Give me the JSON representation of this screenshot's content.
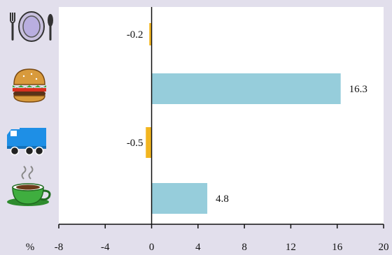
{
  "chart_data": {
    "type": "bar",
    "orientation": "horizontal",
    "categories": [
      "dining",
      "fast food",
      "transport",
      "coffee"
    ],
    "category_icons": [
      "plate-cutlery-icon",
      "hamburger-icon",
      "truck-icon",
      "coffee-cup-icon"
    ],
    "values": [
      -0.2,
      16.3,
      -0.5,
      4.8
    ],
    "value_labels": [
      "-0.2",
      "16.3",
      "-0.5",
      "4.8"
    ],
    "xlim": [
      -8,
      20
    ],
    "xticks": [
      -8,
      -4,
      0,
      4,
      8,
      12,
      16,
      20
    ],
    "unit_label": "%",
    "grid": false,
    "colors": {
      "positive": "#96cddb",
      "negative": "#f2b51f",
      "plot_background": "#ffffff",
      "page_background": "#e2dfec"
    }
  }
}
